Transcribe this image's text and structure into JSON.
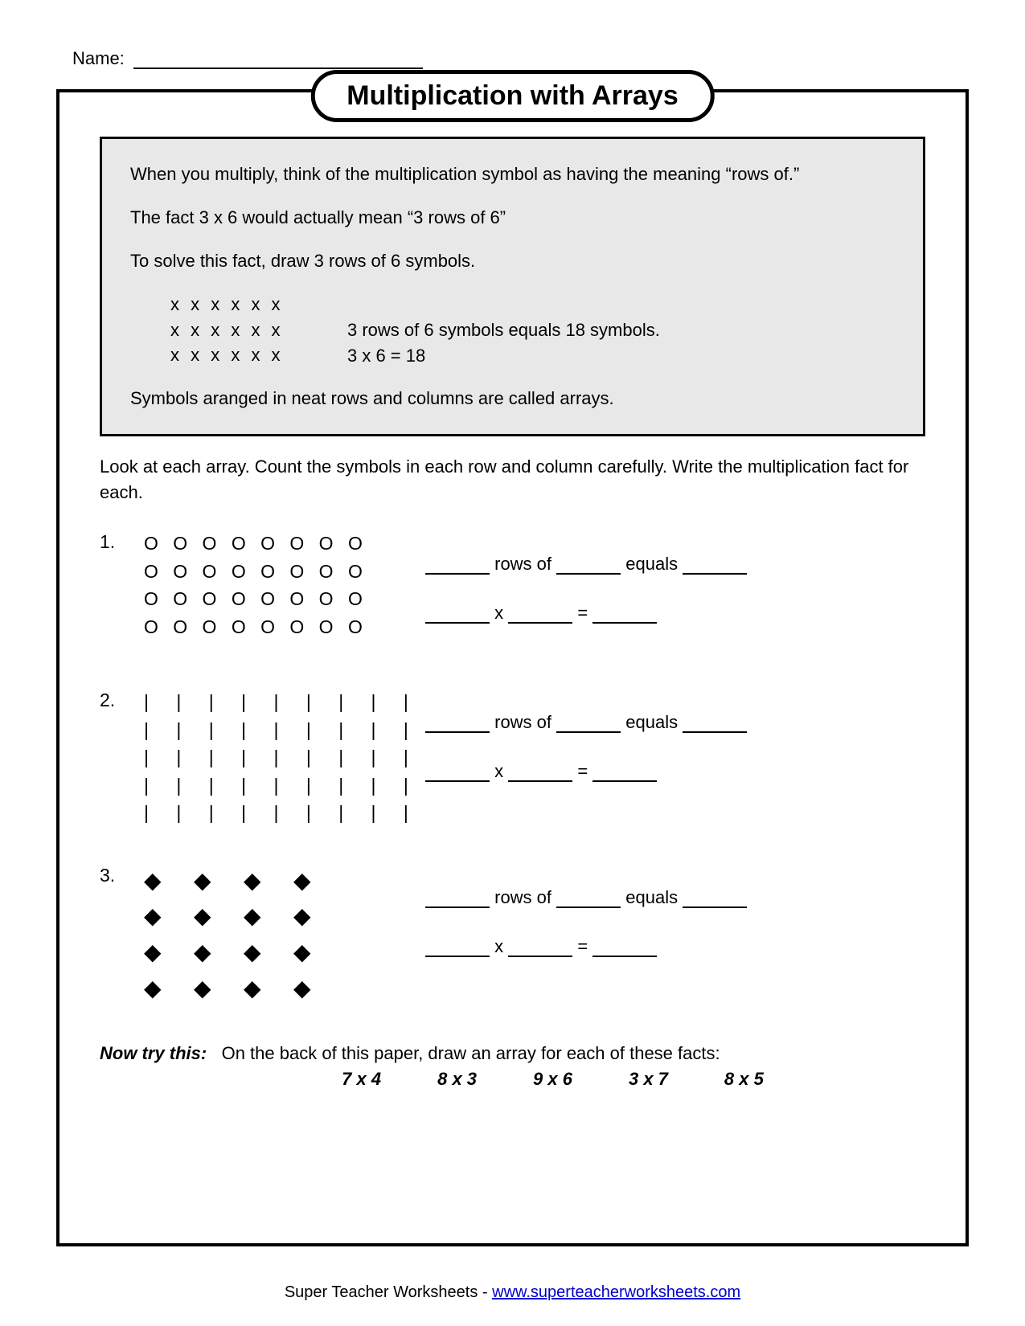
{
  "name_label": "Name:",
  "title": "Multiplication with Arrays",
  "info": {
    "p1": "When you multiply, think of the multiplication symbol as having the meaning “rows of.”",
    "p2": "The fact 3 x 6 would actually mean “3 rows of 6”",
    "p3": "To solve this fact, draw 3 rows of 6 symbols.",
    "example_row": "x x x x x x",
    "example_text1": "3 rows of 6 symbols equals 18 symbols.",
    "example_text2": "3 x 6 = 18",
    "p4": "Symbols aranged in neat rows and columns are called arrays."
  },
  "instructions": "Look at each array.  Count the symbols in each row and column carefully.  Write the multiplication fact for each.",
  "problems": [
    {
      "num": "1.",
      "symbol": "O",
      "type": "letter",
      "rows": 4,
      "cols": 8
    },
    {
      "num": "2.",
      "symbol": "|",
      "type": "bar",
      "rows": 5,
      "cols": 9
    },
    {
      "num": "3.",
      "symbol": "◆",
      "type": "diamond",
      "rows": 4,
      "cols": 4
    }
  ],
  "answer_template": {
    "w_rows_of": "rows of",
    "w_equals": "equals",
    "w_x": "x",
    "w_eq": "="
  },
  "try_this": {
    "label": "Now try this:",
    "text": "On the back of this paper, draw an array for each of these facts:",
    "facts": [
      "7 x 4",
      "8 x 3",
      "9 x 6",
      "3 x 7",
      "8 x 5"
    ]
  },
  "footer": {
    "text": "Super Teacher Worksheets - ",
    "link": "www.superteacherworksheets.com"
  }
}
